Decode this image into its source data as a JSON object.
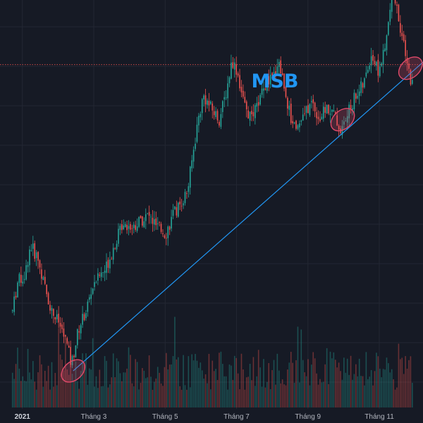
{
  "chart_data": {
    "type": "candlestick",
    "title": "MSB",
    "xlabel": "",
    "ylabel": "",
    "x_ticks": [
      "2021",
      "Tháng 3",
      "Tháng 5",
      "Tháng 7",
      "Tháng 9",
      "Tháng 11"
    ],
    "x_tick_months": [
      0,
      2,
      4,
      6,
      8,
      10
    ],
    "x_range_months": [
      -0.35,
      11.5
    ],
    "price_range": [
      10,
      43
    ],
    "grid": true,
    "legend": "none",
    "colors": {
      "up": "#26a69a",
      "down": "#ef5350",
      "trendline": "#2196f3",
      "marker": "#e04a6a",
      "hline": "#ef5350",
      "title": "#2196f3",
      "background": "#161a25"
    },
    "price_path": [
      [
        0.0,
        17.0
      ],
      [
        0.15,
        19.5
      ],
      [
        0.35,
        20.0
      ],
      [
        0.5,
        22.5
      ],
      [
        0.7,
        21.5
      ],
      [
        0.9,
        19.0
      ],
      [
        1.1,
        17.0
      ],
      [
        1.3,
        16.0
      ],
      [
        1.5,
        14.5
      ],
      [
        1.65,
        12.5
      ],
      [
        1.85,
        15.5
      ],
      [
        2.05,
        17.0
      ],
      [
        2.3,
        19.5
      ],
      [
        2.6,
        20.5
      ],
      [
        2.85,
        22.5
      ],
      [
        3.1,
        24.5
      ],
      [
        3.35,
        24.0
      ],
      [
        3.55,
        24.5
      ],
      [
        3.8,
        25.0
      ],
      [
        4.05,
        24.0
      ],
      [
        4.3,
        23.5
      ],
      [
        4.5,
        25.0
      ],
      [
        4.7,
        26.0
      ],
      [
        4.9,
        27.0
      ],
      [
        5.05,
        30.0
      ],
      [
        5.2,
        33.0
      ],
      [
        5.35,
        35.0
      ],
      [
        5.55,
        34.0
      ],
      [
        5.8,
        33.0
      ],
      [
        6.0,
        35.5
      ],
      [
        6.15,
        38.0
      ],
      [
        6.3,
        37.0
      ],
      [
        6.5,
        34.0
      ],
      [
        6.7,
        33.0
      ],
      [
        6.9,
        34.5
      ],
      [
        7.1,
        36.0
      ],
      [
        7.3,
        36.5
      ],
      [
        7.45,
        38.0
      ],
      [
        7.6,
        36.0
      ],
      [
        7.8,
        33.0
      ],
      [
        8.0,
        32.5
      ],
      [
        8.2,
        33.5
      ],
      [
        8.4,
        34.5
      ],
      [
        8.6,
        33.0
      ],
      [
        8.8,
        34.0
      ],
      [
        9.0,
        33.5
      ],
      [
        9.2,
        32.0
      ],
      [
        9.4,
        33.5
      ],
      [
        9.6,
        35.0
      ],
      [
        9.85,
        36.0
      ],
      [
        10.05,
        38.5
      ],
      [
        10.25,
        37.0
      ],
      [
        10.45,
        39.0
      ],
      [
        10.65,
        44.0
      ],
      [
        10.85,
        41.0
      ],
      [
        11.05,
        37.5
      ],
      [
        11.2,
        36.0
      ]
    ],
    "trendline": {
      "start": [
        1.7,
        12.0
      ],
      "end": [
        11.5,
        37.8
      ]
    },
    "horizontal_line": {
      "price": 37.6
    },
    "highlight_markers": [
      [
        1.7,
        12.0
      ],
      [
        9.25,
        33.0
      ],
      [
        11.15,
        37.3
      ]
    ]
  }
}
